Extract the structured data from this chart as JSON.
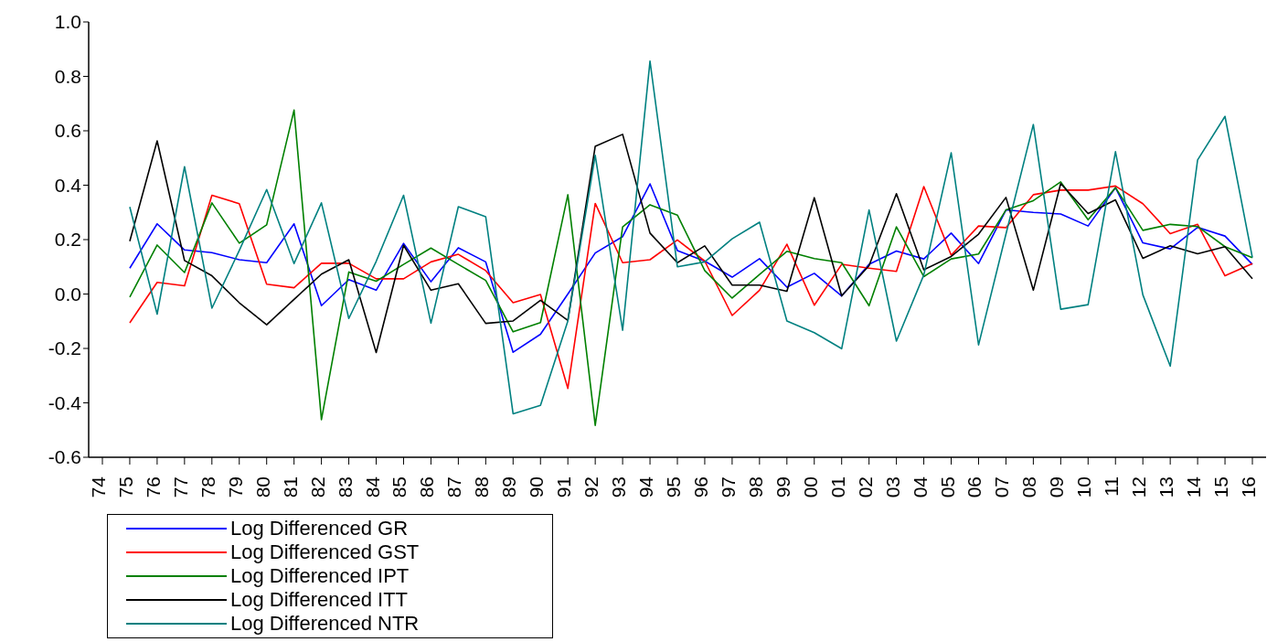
{
  "chart_data": {
    "type": "line",
    "categories": [
      "74",
      "75",
      "76",
      "77",
      "78",
      "79",
      "80",
      "81",
      "82",
      "83",
      "84",
      "85",
      "86",
      "87",
      "88",
      "89",
      "90",
      "91",
      "92",
      "93",
      "94",
      "95",
      "96",
      "97",
      "98",
      "99",
      "00",
      "01",
      "02",
      "03",
      "04",
      "05",
      "06",
      "07",
      "08",
      "09",
      "10",
      "11",
      "12",
      "13",
      "14",
      "15",
      "16"
    ],
    "ylim": [
      -0.6,
      1.0
    ],
    "yticks": [
      {
        "value": -0.6,
        "label": "-0.6"
      },
      {
        "value": -0.4,
        "label": "-0.4"
      },
      {
        "value": -0.2,
        "label": "-0.2"
      },
      {
        "value": 0,
        "label": "0.0"
      },
      {
        "value": 0.2,
        "label": "0.2"
      },
      {
        "value": 0.4,
        "label": "0.4"
      },
      {
        "value": 0.6,
        "label": "0.6"
      },
      {
        "value": 0.8,
        "label": "0.8"
      },
      {
        "value": 1,
        "label": "1.0"
      }
    ],
    "legend": "bottom left",
    "grid": false,
    "series": [
      {
        "name": "Log Differenced GR",
        "color": "#0000ff",
        "values": [
          null,
          0.095,
          0.258,
          0.162,
          0.152,
          0.126,
          0.115,
          0.258,
          -0.043,
          0.053,
          0.014,
          0.186,
          0.045,
          0.17,
          0.118,
          -0.214,
          -0.148,
          0.0,
          0.151,
          0.211,
          0.405,
          0.16,
          0.121,
          0.062,
          0.13,
          0.025,
          0.076,
          -0.007,
          0.109,
          0.158,
          0.129,
          0.224,
          0.112,
          0.309,
          0.3,
          0.294,
          0.25,
          0.391,
          0.188,
          0.166,
          0.245,
          0.213,
          0.109
        ]
      },
      {
        "name": "Log Differenced GST",
        "color": "#ff0000",
        "values": [
          null,
          -0.106,
          0.043,
          0.03,
          0.363,
          0.332,
          0.036,
          0.023,
          0.113,
          0.113,
          0.056,
          0.056,
          0.118,
          0.146,
          0.086,
          -0.032,
          -0.002,
          -0.347,
          0.333,
          0.115,
          0.126,
          0.199,
          0.121,
          -0.079,
          0.014,
          0.183,
          -0.041,
          0.109,
          0.095,
          0.083,
          0.395,
          0.143,
          0.25,
          0.244,
          0.365,
          0.382,
          0.382,
          0.397,
          0.332,
          0.222,
          0.256,
          0.067,
          0.112
        ]
      },
      {
        "name": "Log Differenced IPT",
        "color": "#008000",
        "values": [
          null,
          -0.011,
          0.18,
          0.079,
          0.335,
          0.187,
          0.254,
          0.676,
          -0.462,
          0.081,
          0.047,
          0.109,
          0.169,
          0.109,
          0.05,
          -0.139,
          -0.105,
          0.365,
          -0.483,
          0.247,
          0.328,
          0.29,
          0.086,
          -0.015,
          0.072,
          0.157,
          0.13,
          0.115,
          -0.043,
          0.247,
          0.064,
          0.129,
          0.147,
          0.309,
          0.343,
          0.412,
          0.273,
          0.391,
          0.234,
          0.256,
          0.248,
          0.174,
          0.134
        ]
      },
      {
        "name": "Log Differenced ITT",
        "color": "#000000",
        "values": [
          null,
          0.194,
          0.563,
          0.123,
          0.067,
          -0.032,
          -0.113,
          -0.02,
          0.073,
          0.126,
          -0.215,
          0.179,
          0.014,
          0.038,
          -0.108,
          -0.099,
          -0.023,
          -0.097,
          0.543,
          0.587,
          0.224,
          0.115,
          0.177,
          0.033,
          0.033,
          0.01,
          0.354,
          -0.007,
          0.104,
          0.369,
          0.089,
          0.138,
          0.22,
          0.355,
          0.014,
          0.406,
          0.296,
          0.346,
          0.131,
          0.177,
          0.148,
          0.174,
          0.056
        ]
      },
      {
        "name": "Log Differenced NTR",
        "color": "#008080",
        "values": [
          null,
          0.32,
          -0.074,
          0.468,
          -0.052,
          0.16,
          0.384,
          0.112,
          0.335,
          -0.09,
          0.12,
          0.363,
          -0.107,
          0.321,
          0.284,
          -0.44,
          -0.409,
          -0.099,
          0.51,
          -0.133,
          0.856,
          0.1,
          0.118,
          0.203,
          0.264,
          -0.099,
          -0.142,
          -0.201,
          0.309,
          -0.173,
          0.07,
          0.519,
          -0.187,
          0.22,
          0.623,
          -0.056,
          -0.039,
          0.523,
          -0.003,
          -0.265,
          0.493,
          0.653,
          0.134
        ]
      }
    ]
  }
}
